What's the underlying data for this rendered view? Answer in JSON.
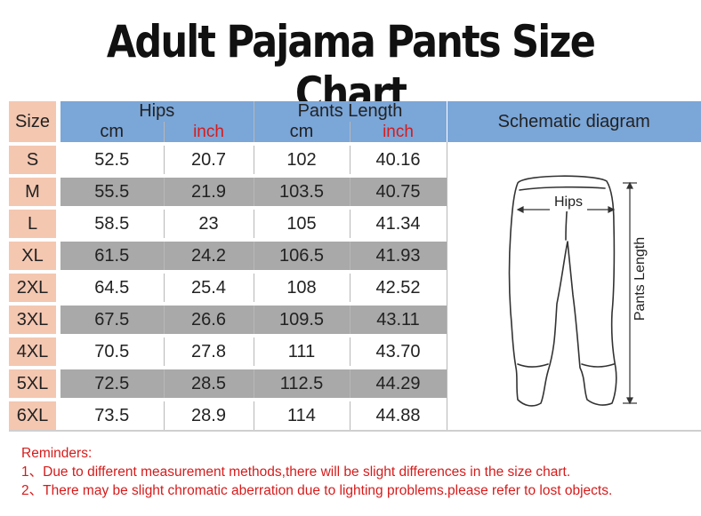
{
  "title": "Adult Pajama Pants Size Chart",
  "table": {
    "size_header": "Size",
    "hips_header": "Hips",
    "length_header": "Pants Length",
    "cm_label": "cm",
    "inch_label": "inch",
    "schematic_header": "Schematic diagram",
    "rows": [
      {
        "size": "S",
        "hips_cm": "52.5",
        "hips_in": "20.7",
        "len_cm": "102",
        "len_in": "40.16"
      },
      {
        "size": "M",
        "hips_cm": "55.5",
        "hips_in": "21.9",
        "len_cm": "103.5",
        "len_in": "40.75"
      },
      {
        "size": "L",
        "hips_cm": "58.5",
        "hips_in": "23",
        "len_cm": "105",
        "len_in": "41.34"
      },
      {
        "size": "XL",
        "hips_cm": "61.5",
        "hips_in": "24.2",
        "len_cm": "106.5",
        "len_in": "41.93"
      },
      {
        "size": "2XL",
        "hips_cm": "64.5",
        "hips_in": "25.4",
        "len_cm": "108",
        "len_in": "42.52"
      },
      {
        "size": "3XL",
        "hips_cm": "67.5",
        "hips_in": "26.6",
        "len_cm": "109.5",
        "len_in": "43.11"
      },
      {
        "size": "4XL",
        "hips_cm": "70.5",
        "hips_in": "27.8",
        "len_cm": "111",
        "len_in": "43.70"
      },
      {
        "size": "5XL",
        "hips_cm": "72.5",
        "hips_in": "28.5",
        "len_cm": "112.5",
        "len_in": "44.29"
      },
      {
        "size": "6XL",
        "hips_cm": "73.5",
        "hips_in": "28.9",
        "len_cm": "114",
        "len_in": "44.88"
      }
    ]
  },
  "diagram": {
    "hips_label": "Hips",
    "length_label": "Pants Length"
  },
  "reminders": {
    "heading": "Reminders:",
    "line1": "1、Due to different measurement methods,there will be slight differences in the size chart.",
    "line2": "2、There may be slight chromatic aberration due to lighting problems.please refer to lost objects."
  },
  "colors": {
    "header_blue": "#7ba6d8",
    "size_peach": "#f4c7b1",
    "row_gray": "#a9a9a9",
    "accent_red": "#d61b1b"
  }
}
